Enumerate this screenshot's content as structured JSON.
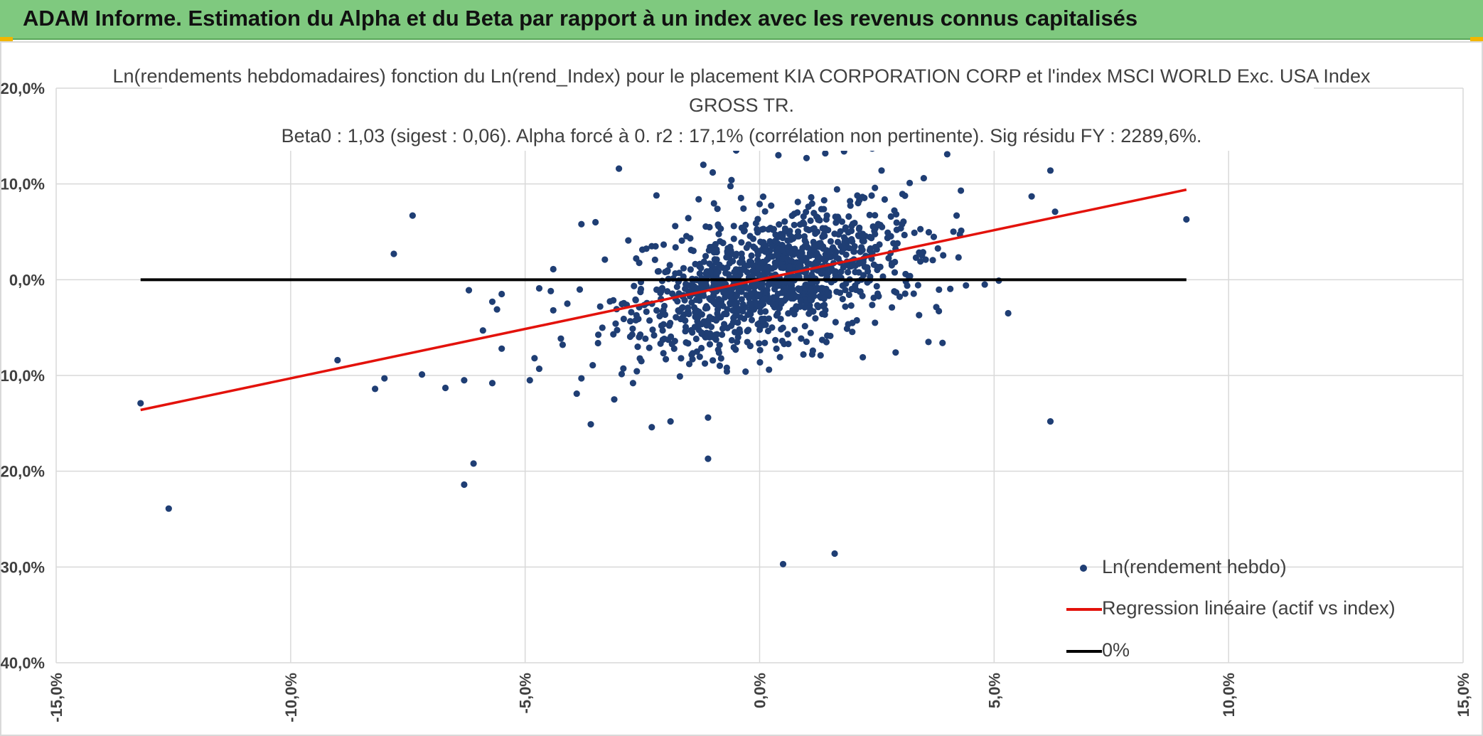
{
  "header": {
    "title": "ADAM Informe. Estimation du Alpha et du Beta par rapport à un index avec les revenus connus capitalisés",
    "background": "#7fc97f",
    "corner_color": "#f2b600"
  },
  "chart_data": {
    "type": "scatter",
    "title_lines": [
      "Ln(rendements hebdomadaires) fonction du Ln(rend_Index) pour le placement KIA CORPORATION CORP et l'index MSCI WORLD Exc. USA Index",
      "GROSS TR.",
      "Beta0 : 1,03 (sigest : 0,06). Alpha forcé à 0. r2 : 17,1% (corrélation non pertinente). Sig résidu FY : 2289,6%."
    ],
    "xlim": [
      -15,
      15
    ],
    "ylim": [
      -40,
      20
    ],
    "x_ticks": [
      "-15,0%",
      "-10,0%",
      "-5,0%",
      "0,0%",
      "5,0%",
      "10,0%",
      "15,0%"
    ],
    "y_ticks": [
      "20,0%",
      "10,0%",
      "0,0%",
      "-10,0%",
      "-20,0%",
      "-30,0%",
      "-40,0%"
    ],
    "grid": true,
    "legend_position": "bottom-right",
    "series": [
      {
        "name": "Ln(rendement hebdo)",
        "kind": "scatter",
        "color": "#1f3e74",
        "outliers": [
          [
            -13.2,
            -12.9
          ],
          [
            -12.6,
            -23.9
          ],
          [
            -9.0,
            -8.4
          ],
          [
            -8.2,
            -11.4
          ],
          [
            -8.0,
            -10.3
          ],
          [
            -7.8,
            2.7
          ],
          [
            -7.4,
            6.7
          ],
          [
            -7.2,
            -9.9
          ],
          [
            -6.7,
            -11.3
          ],
          [
            -6.3,
            -10.5
          ],
          [
            -6.3,
            -21.4
          ],
          [
            -6.2,
            -1.1
          ],
          [
            -6.1,
            -19.2
          ],
          [
            -5.7,
            -2.3
          ],
          [
            -5.7,
            -10.8
          ],
          [
            -5.6,
            -3.1
          ],
          [
            -5.5,
            -1.5
          ],
          [
            -5.5,
            -7.2
          ],
          [
            -5.9,
            -5.3
          ],
          [
            -4.9,
            -10.5
          ],
          [
            -4.8,
            -8.2
          ],
          [
            -4.7,
            -9.3
          ],
          [
            -4.7,
            -0.9
          ],
          [
            -4.4,
            -3.2
          ],
          [
            -4.4,
            1.1
          ],
          [
            -4.2,
            -6.8
          ],
          [
            -4.1,
            -2.5
          ],
          [
            -3.9,
            -11.9
          ],
          [
            -3.8,
            -10.3
          ],
          [
            -3.8,
            5.8
          ],
          [
            -3.6,
            -15.1
          ],
          [
            -3.5,
            6.0
          ],
          [
            -3.4,
            -2.8
          ],
          [
            -3.1,
            -12.5
          ],
          [
            -3.0,
            11.6
          ],
          [
            -2.6,
            -7.0
          ],
          [
            -2.3,
            -15.4
          ],
          [
            -2.3,
            3.5
          ],
          [
            -2.2,
            8.8
          ],
          [
            -1.9,
            -14.8
          ],
          [
            -1.7,
            -10.1
          ],
          [
            -1.3,
            8.4
          ],
          [
            -1.2,
            12.0
          ],
          [
            -1.1,
            -18.7
          ],
          [
            -1.1,
            -14.4
          ],
          [
            -1.0,
            11.2
          ],
          [
            -0.6,
            10.4
          ],
          [
            -0.5,
            13.5
          ],
          [
            0.5,
            -29.7
          ],
          [
            0.4,
            13.0
          ],
          [
            1.0,
            12.7
          ],
          [
            1.6,
            -28.6
          ],
          [
            1.4,
            13.2
          ],
          [
            1.8,
            13.4
          ],
          [
            2.4,
            13.7
          ],
          [
            2.6,
            11.4
          ],
          [
            3.2,
            10.1
          ],
          [
            3.5,
            10.6
          ],
          [
            4.0,
            13.1
          ],
          [
            4.2,
            6.7
          ],
          [
            3.9,
            -6.6
          ],
          [
            4.4,
            -0.6
          ],
          [
            4.8,
            -0.5
          ],
          [
            5.1,
            -0.1
          ],
          [
            5.3,
            -3.5
          ],
          [
            5.8,
            8.7
          ],
          [
            6.2,
            11.4
          ],
          [
            6.3,
            7.1
          ],
          [
            6.2,
            -14.8
          ],
          [
            9.1,
            6.3
          ],
          [
            2.9,
            -7.6
          ],
          [
            3.4,
            -3.7
          ],
          [
            3.6,
            -6.5
          ],
          [
            2.2,
            -8.1
          ],
          [
            1.3,
            -7.9
          ],
          [
            0.2,
            -9.4
          ],
          [
            -0.3,
            -9.6
          ],
          [
            -0.7,
            -9.2
          ],
          [
            -1.5,
            -8.8
          ],
          [
            -2.0,
            -8.3
          ],
          [
            -2.7,
            -10.8
          ],
          [
            -3.3,
            2.1
          ],
          [
            -2.8,
            4.1
          ],
          [
            -1.8,
            5.6
          ],
          [
            -0.9,
            7.4
          ],
          [
            0.0,
            7.9
          ],
          [
            1.1,
            8.6
          ],
          [
            2.1,
            8.0
          ],
          [
            2.8,
            6.6
          ],
          [
            3.3,
            4.9
          ]
        ],
        "cloud": {
          "x_mean": 0.3,
          "x_std": 1.5,
          "residual_std": 3.3,
          "count": 1160,
          "x_clip": [
            -4.8,
            4.3
          ],
          "y_clip": [
            -10.2,
            10.2
          ],
          "seed": 7
        }
      },
      {
        "name": "Regression linéaire (actif vs index)",
        "kind": "line",
        "color": "#e3120b",
        "x": [
          -13.2,
          9.1
        ],
        "y": [
          -13.6,
          9.4
        ]
      },
      {
        "name": "0%",
        "kind": "line",
        "color": "#000000",
        "x": [
          -13.2,
          9.1
        ],
        "y": [
          0,
          0
        ]
      }
    ]
  }
}
